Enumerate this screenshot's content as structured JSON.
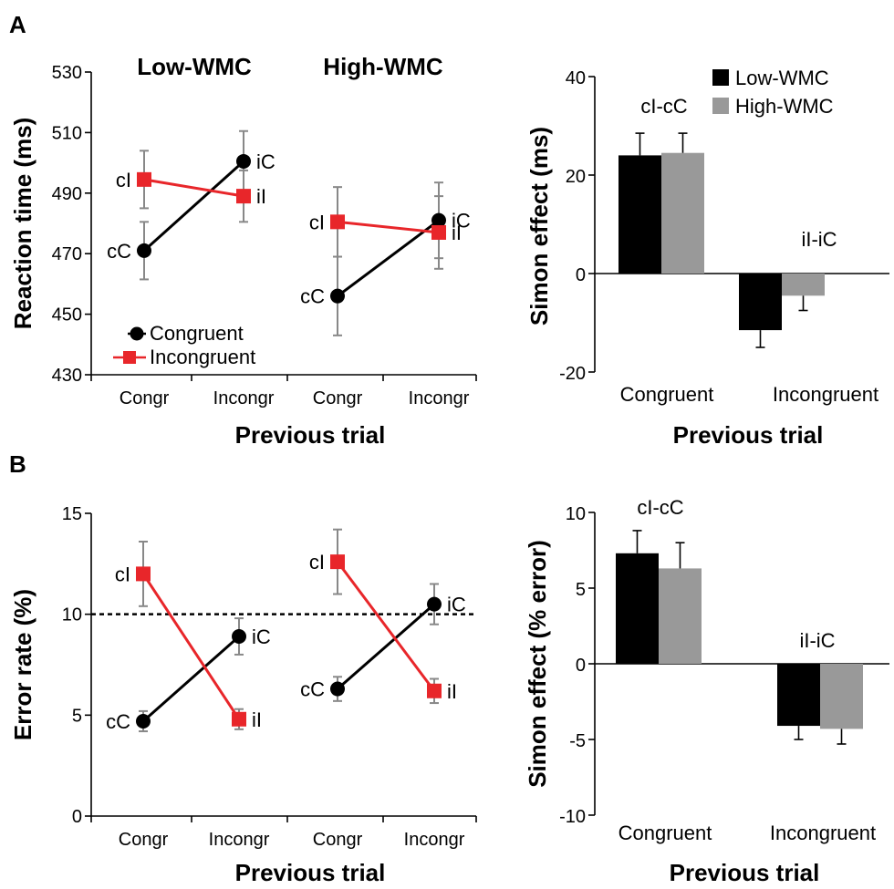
{
  "colors": {
    "congruent_line": "#000000",
    "incongruent_line": "#e8262a",
    "low_bar": "#000000",
    "high_bar": "#999999",
    "error_bar": "#888888"
  },
  "panels": {
    "A": {
      "label": "A"
    },
    "B": {
      "label": "B"
    }
  },
  "chart_data": [
    {
      "id": "A-line",
      "type": "line",
      "title_low": "Low-WMC",
      "title_high": "High-WMC",
      "ylabel": "Reaction time (ms)",
      "xlabel": "Previous trial",
      "ylim": [
        430,
        530
      ],
      "yticks": [
        "430",
        "450",
        "470",
        "490",
        "510",
        "530"
      ],
      "ytick_values": [
        430,
        450,
        470,
        490,
        510,
        530
      ],
      "categories": [
        "Congr",
        "Incongr",
        "Congr",
        "Incongr"
      ],
      "legend": [
        "Congruent",
        "Incongruent"
      ],
      "groups": [
        {
          "name": "Low-WMC",
          "series": [
            {
              "name": "Congruent",
              "values": [
                471,
                500.5
              ],
              "errors": [
                9.5,
                10
              ],
              "labels": [
                "cC",
                "iC"
              ]
            },
            {
              "name": "Incongruent",
              "values": [
                494.5,
                489
              ],
              "errors": [
                9.5,
                8.5
              ],
              "labels": [
                "cI",
                "iI"
              ]
            }
          ]
        },
        {
          "name": "High-WMC",
          "series": [
            {
              "name": "Congruent",
              "values": [
                456,
                481
              ],
              "errors": [
                13,
                12.5
              ],
              "labels": [
                "cC",
                "iC"
              ]
            },
            {
              "name": "Incongruent",
              "values": [
                480.5,
                477
              ],
              "errors": [
                11.5,
                12
              ],
              "labels": [
                "cI",
                "iI"
              ]
            }
          ]
        }
      ]
    },
    {
      "id": "A-bar",
      "type": "bar",
      "ylabel": "Simon effect (ms)",
      "xlabel": "Previous trial",
      "ylim": [
        -20,
        40
      ],
      "yticks": [
        "-20",
        "0",
        "20",
        "40"
      ],
      "ytick_values": [
        -20,
        0,
        20,
        40
      ],
      "categories": [
        "Congruent",
        "Incongruent"
      ],
      "annotations": [
        "cI-cC",
        "iI-iC"
      ],
      "series": [
        {
          "name": "Low-WMC",
          "values": [
            24,
            -11.5
          ],
          "errors": [
            4.5,
            3.5
          ]
        },
        {
          "name": "High-WMC",
          "values": [
            24.5,
            -4.5
          ],
          "errors": [
            4,
            3
          ]
        }
      ],
      "legend": [
        "Low-WMC",
        "High-WMC"
      ]
    },
    {
      "id": "B-line",
      "type": "line",
      "ylabel": "Error rate (%)",
      "xlabel": "Previous trial",
      "ylim": [
        0,
        15
      ],
      "yticks": [
        "0",
        "5",
        "10",
        "15"
      ],
      "ytick_values": [
        0,
        5,
        10,
        15
      ],
      "reference_line": 10,
      "categories": [
        "Congr",
        "Incongr",
        "Congr",
        "Incongr"
      ],
      "groups": [
        {
          "name": "Low-WMC",
          "series": [
            {
              "name": "Congruent",
              "values": [
                4.7,
                8.9
              ],
              "errors": [
                0.5,
                0.9
              ],
              "labels": [
                "cC",
                "iC"
              ]
            },
            {
              "name": "Incongruent",
              "values": [
                12,
                4.8
              ],
              "errors": [
                1.6,
                0.5
              ],
              "labels": [
                "cI",
                "iI"
              ]
            }
          ]
        },
        {
          "name": "High-WMC",
          "series": [
            {
              "name": "Congruent",
              "values": [
                6.3,
                10.5
              ],
              "errors": [
                0.6,
                1.0
              ],
              "labels": [
                "cC",
                "iC"
              ]
            },
            {
              "name": "Incongruent",
              "values": [
                12.6,
                6.2
              ],
              "errors": [
                1.6,
                0.6
              ],
              "labels": [
                "cI",
                "iI"
              ]
            }
          ]
        }
      ]
    },
    {
      "id": "B-bar",
      "type": "bar",
      "ylabel": "Simon effect (% error)",
      "xlabel": "Previous trial",
      "ylim": [
        -10,
        10
      ],
      "yticks": [
        "-10",
        "-5",
        "0",
        "5",
        "10"
      ],
      "ytick_values": [
        -10,
        -5,
        0,
        5,
        10
      ],
      "categories": [
        "Congruent",
        "Incongruent"
      ],
      "annotations": [
        "cI-cC",
        "iI-iC"
      ],
      "series": [
        {
          "name": "Low-WMC",
          "values": [
            7.3,
            -4.1
          ],
          "errors": [
            1.5,
            0.9
          ]
        },
        {
          "name": "High-WMC",
          "values": [
            6.3,
            -4.3
          ],
          "errors": [
            1.7,
            1.0
          ]
        }
      ]
    }
  ]
}
